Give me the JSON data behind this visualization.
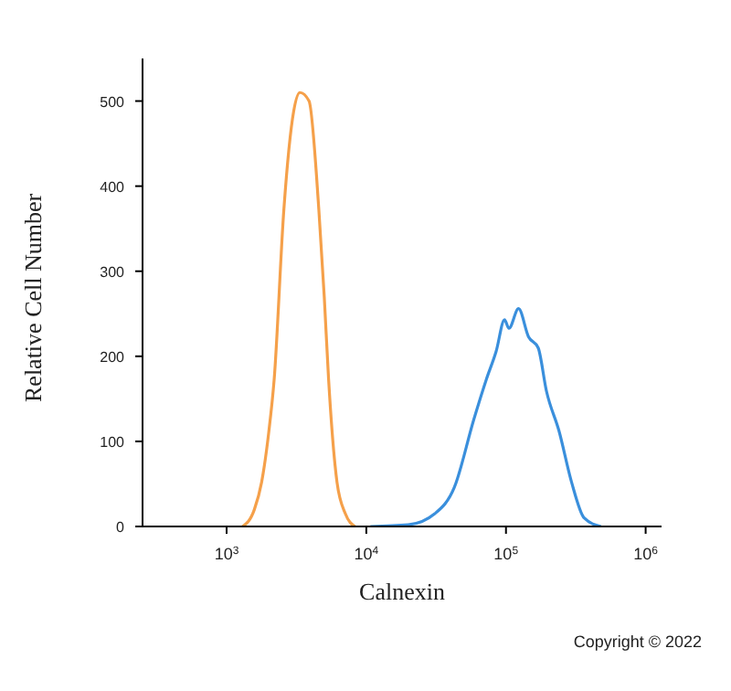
{
  "chart_data": {
    "type": "line",
    "xlabel": "Calnexin",
    "ylabel": "Relative Cell Number",
    "annotations": [
      "Copyright © 2022"
    ],
    "log": "x",
    "xlim": [
      250,
      1300000
    ],
    "ylim": [
      0,
      550
    ],
    "xticks": [
      {
        "value": 1000,
        "label": "10$^{3}$"
      },
      {
        "value": 10000,
        "label": "10$^{4}$"
      },
      {
        "value": 100000,
        "label": "10$^{5}$"
      },
      {
        "value": 1000000,
        "label": "10$^{6}$"
      }
    ],
    "yticks": [
      0,
      100,
      200,
      300,
      400,
      500
    ],
    "marker": "none",
    "line_style": "solid",
    "series": [
      {
        "color": "#f5a04a",
        "x": [
          1300,
          1580,
          1780,
          2000,
          2190,
          2570,
          3020,
          3350,
          3890,
          4570,
          5000,
          5370,
          6170,
          7080,
          8300
        ],
        "values": [
          0,
          20,
          52,
          110,
          173,
          373,
          488,
          510,
          500,
          373,
          270,
          173,
          52,
          15,
          0
        ]
      },
      {
        "color": "#3a8fdc",
        "x": [
          10700,
          20000,
          30900,
          42700,
          58900,
          72400,
          85100,
          97700,
          105000,
          123000,
          145000,
          170000,
          195000,
          240000,
          295000,
          363000,
          479000
        ],
        "values": [
          0,
          2,
          15,
          46,
          126,
          173,
          206,
          243,
          233,
          256,
          223,
          210,
          159,
          112,
          52,
          10,
          0
        ]
      }
    ]
  }
}
